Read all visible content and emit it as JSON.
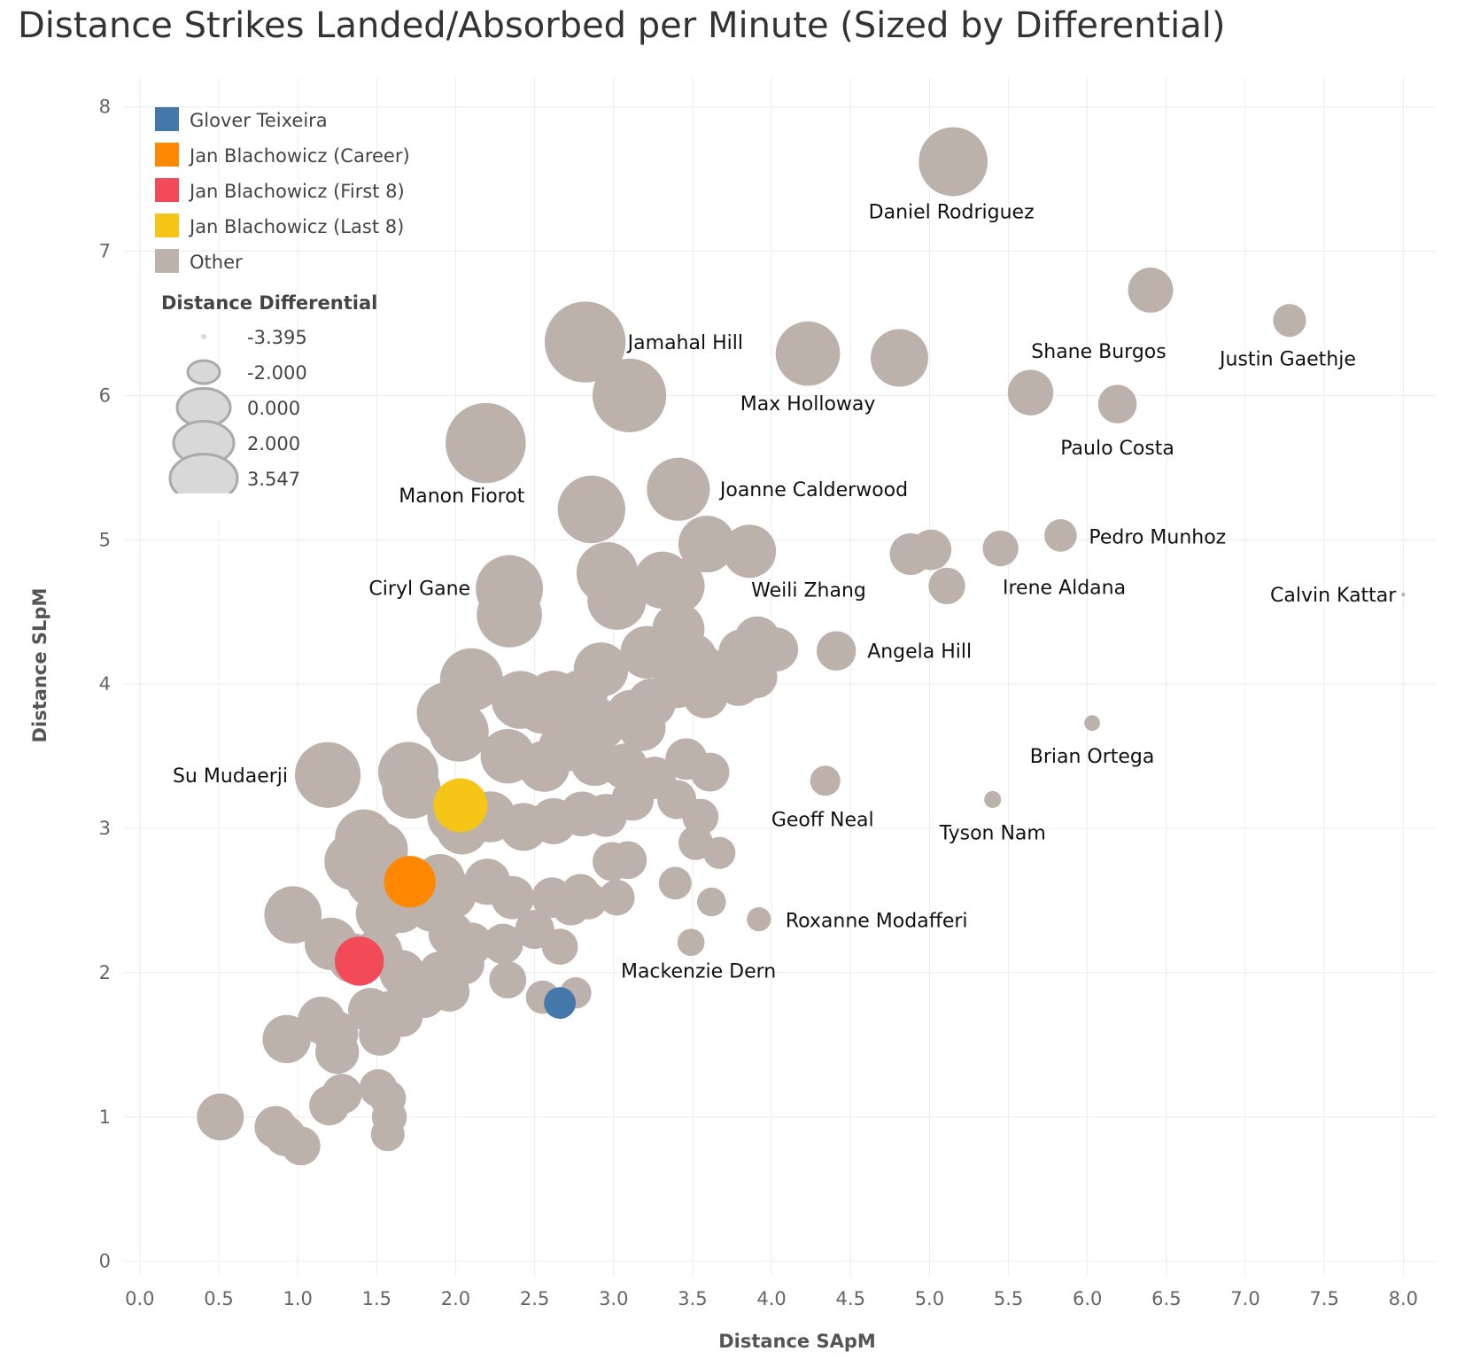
{
  "chart_data": {
    "type": "scatter",
    "title": "Distance Strikes Landed/Absorbed per Minute (Sized by Differential)",
    "xlabel": "Distance SApM",
    "ylabel": "Distance SLpM",
    "xlim": [
      -0.1,
      8.2
    ],
    "ylim": [
      -0.1,
      8.2
    ],
    "x_ticks": [
      "0.0",
      "0.5",
      "1.0",
      "1.5",
      "2.0",
      "2.5",
      "3.0",
      "3.5",
      "4.0",
      "4.5",
      "5.0",
      "5.5",
      "6.0",
      "6.5",
      "7.0",
      "7.5",
      "8.0"
    ],
    "y_ticks": [
      "0",
      "1",
      "2",
      "3",
      "4",
      "5",
      "6",
      "7",
      "8"
    ],
    "grid": true,
    "legend_position": "top-left",
    "color_legend": [
      {
        "name": "Glover Teixeira",
        "color": "#4477aa"
      },
      {
        "name": "Jan Blachowicz (Career)",
        "color": "#ff8800"
      },
      {
        "name": "Jan Blachowicz (First 8)",
        "color": "#f24a59"
      },
      {
        "name": "Jan Blachowicz (Last 8)",
        "color": "#f5c518"
      },
      {
        "name": "Other",
        "color": "#bcb1ab"
      }
    ],
    "size_legend": {
      "title": "Distance Differential",
      "values": [
        "-3.395",
        "-2.000",
        "0.000",
        "2.000",
        "3.547"
      ]
    },
    "highlighted": [
      {
        "name": "Glover Teixeira",
        "x": 2.66,
        "y": 1.79
      },
      {
        "name": "Jan Blachowicz (Career)",
        "x": 1.71,
        "y": 2.63
      },
      {
        "name": "Jan Blachowicz (First 8)",
        "x": 1.39,
        "y": 2.08
      },
      {
        "name": "Jan Blachowicz (Last 8)",
        "x": 2.03,
        "y": 3.16
      }
    ],
    "labeled_points": [
      {
        "label": "Daniel Rodriguez",
        "x": 5.15,
        "y": 7.62
      },
      {
        "label": "Jamahal Hill",
        "x": 2.82,
        "y": 6.37
      },
      {
        "label": "Max Holloway",
        "x": 4.23,
        "y": 6.29
      },
      {
        "label": "Shane Burgos",
        "x": 5.64,
        "y": 6.02
      },
      {
        "label": "Justin Gaethje",
        "x": 7.28,
        "y": 6.52
      },
      {
        "label": "Paulo Costa",
        "x": 6.19,
        "y": 5.94
      },
      {
        "label": "Manon Fiorot",
        "x": 2.19,
        "y": 5.67
      },
      {
        "label": "Joanne Calderwood",
        "x": 3.41,
        "y": 5.35
      },
      {
        "label": "Pedro Munhoz",
        "x": 5.83,
        "y": 5.03
      },
      {
        "label": "Ciryl Gane",
        "x": 2.34,
        "y": 4.66
      },
      {
        "label": "Irene Aldana",
        "x": 5.11,
        "y": 4.68
      },
      {
        "label": "Weili Zhang",
        "x": 3.91,
        "y": 4.31
      },
      {
        "label": "Calvin Kattar",
        "x": 8.0,
        "y": 4.62
      },
      {
        "label": "Angela Hill",
        "x": 4.41,
        "y": 4.23
      },
      {
        "label": "Brian Ortega",
        "x": 6.03,
        "y": 3.73
      },
      {
        "label": "Su Mudaerji",
        "x": 1.19,
        "y": 3.37
      },
      {
        "label": "Geoff Neal",
        "x": 4.34,
        "y": 3.33
      },
      {
        "label": "Tyson Nam",
        "x": 5.4,
        "y": 3.2
      },
      {
        "label": "Roxanne Modafferi",
        "x": 3.92,
        "y": 2.37
      },
      {
        "label": "Mackenzie Dern",
        "x": 2.76,
        "y": 1.86
      }
    ],
    "other_points": [
      [
        6.4,
        6.73
      ],
      [
        4.81,
        6.26
      ],
      [
        3.1,
        6.0
      ],
      [
        2.86,
        5.21
      ],
      [
        3.59,
        4.97
      ],
      [
        3.86,
        4.92
      ],
      [
        2.96,
        4.77
      ],
      [
        3.31,
        4.72
      ],
      [
        3.4,
        4.68
      ],
      [
        3.02,
        4.58
      ],
      [
        4.88,
        4.9
      ],
      [
        5.01,
        4.93
      ],
      [
        5.45,
        4.94
      ],
      [
        2.34,
        4.48
      ],
      [
        3.41,
        4.38
      ],
      [
        3.21,
        4.22
      ],
      [
        3.36,
        4.21
      ],
      [
        3.5,
        4.18
      ],
      [
        3.57,
        4.1
      ],
      [
        3.81,
        4.22
      ],
      [
        3.9,
        4.05
      ],
      [
        4.03,
        4.24
      ],
      [
        3.79,
        4.0
      ],
      [
        3.58,
        3.92
      ],
      [
        3.4,
        4.0
      ],
      [
        2.1,
        4.03
      ],
      [
        2.92,
        4.1
      ],
      [
        2.79,
        3.91
      ],
      [
        2.62,
        3.9
      ],
      [
        2.41,
        3.89
      ],
      [
        2.55,
        3.85
      ],
      [
        2.7,
        3.8
      ],
      [
        2.92,
        3.72
      ],
      [
        3.11,
        3.79
      ],
      [
        3.24,
        3.87
      ],
      [
        3.18,
        3.7
      ],
      [
        1.95,
        3.8
      ],
      [
        2.02,
        3.67
      ],
      [
        2.33,
        3.5
      ],
      [
        2.56,
        3.43
      ],
      [
        2.69,
        3.57
      ],
      [
        2.88,
        3.46
      ],
      [
        3.07,
        3.43
      ],
      [
        3.26,
        3.35
      ],
      [
        3.46,
        3.48
      ],
      [
        3.61,
        3.39
      ],
      [
        3.4,
        3.2
      ],
      [
        3.55,
        3.08
      ],
      [
        1.7,
        3.39
      ],
      [
        1.72,
        3.27
      ],
      [
        1.99,
        3.08
      ],
      [
        2.04,
        3.0
      ],
      [
        2.22,
        3.08
      ],
      [
        2.43,
        3.01
      ],
      [
        2.62,
        3.05
      ],
      [
        2.8,
        3.1
      ],
      [
        2.95,
        3.09
      ],
      [
        3.12,
        3.2
      ],
      [
        3.52,
        2.9
      ],
      [
        3.67,
        2.83
      ],
      [
        1.42,
        2.93
      ],
      [
        1.52,
        2.85
      ],
      [
        1.35,
        2.77
      ],
      [
        1.48,
        2.64
      ],
      [
        1.9,
        2.65
      ],
      [
        1.98,
        2.54
      ],
      [
        2.2,
        2.63
      ],
      [
        2.36,
        2.52
      ],
      [
        2.61,
        2.52
      ],
      [
        2.79,
        2.55
      ],
      [
        2.99,
        2.77
      ],
      [
        3.09,
        2.78
      ],
      [
        1.53,
        2.41
      ],
      [
        1.65,
        2.45
      ],
      [
        1.85,
        2.45
      ],
      [
        1.97,
        2.27
      ],
      [
        2.1,
        2.2
      ],
      [
        2.3,
        2.2
      ],
      [
        2.5,
        2.3
      ],
      [
        2.73,
        2.46
      ],
      [
        2.84,
        2.5
      ],
      [
        3.02,
        2.52
      ],
      [
        3.39,
        2.62
      ],
      [
        3.62,
        2.49
      ],
      [
        3.49,
        2.21
      ],
      [
        0.97,
        2.4
      ],
      [
        1.21,
        2.2
      ],
      [
        1.35,
        2.1
      ],
      [
        1.51,
        2.14
      ],
      [
        1.66,
        2.0
      ],
      [
        1.9,
        2.0
      ],
      [
        2.05,
        2.06
      ],
      [
        2.33,
        1.95
      ],
      [
        2.66,
        2.18
      ],
      [
        2.55,
        1.83
      ],
      [
        1.96,
        1.87
      ],
      [
        1.8,
        1.83
      ],
      [
        1.15,
        1.67
      ],
      [
        1.24,
        1.58
      ],
      [
        1.46,
        1.74
      ],
      [
        1.6,
        1.73
      ],
      [
        1.66,
        1.7
      ],
      [
        1.52,
        1.57
      ],
      [
        0.93,
        1.54
      ],
      [
        1.25,
        1.45
      ],
      [
        0.51,
        1.0
      ],
      [
        0.86,
        0.93
      ],
      [
        0.92,
        0.87
      ],
      [
        1.02,
        0.8
      ],
      [
        1.2,
        1.08
      ],
      [
        1.28,
        1.16
      ],
      [
        1.51,
        1.2
      ],
      [
        1.57,
        1.13
      ],
      [
        1.58,
        1.0
      ],
      [
        1.57,
        0.88
      ]
    ]
  }
}
